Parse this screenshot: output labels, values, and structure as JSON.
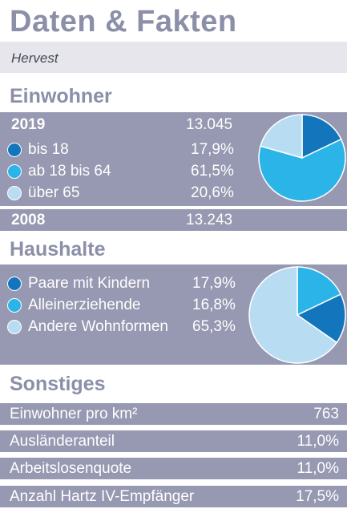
{
  "header": {
    "title": "Daten & Fakten",
    "place": "Hervest"
  },
  "colors": {
    "dark": "#1375bc",
    "mid": "#2ab4e8",
    "light": "#b8ddf3",
    "band": "#9798b1",
    "heading": "#8b8fa8"
  },
  "einwohner": {
    "heading": "Einwohner",
    "year1": "2019",
    "value1": "13.045",
    "items": [
      {
        "label": "bis 18",
        "value": "17,9%",
        "color": "#1375bc"
      },
      {
        "label": "ab 18 bis 64",
        "value": "61,5%",
        "color": "#2ab4e8"
      },
      {
        "label": "über 65",
        "value": "20,6%",
        "color": "#b8ddf3"
      }
    ],
    "year2": "2008",
    "value2": "13.243"
  },
  "haushalte": {
    "heading": "Haushalte",
    "items": [
      {
        "label": "Paare mit Kindern",
        "value": "17,9%",
        "color": "#1375bc"
      },
      {
        "label": "Alleinerziehende",
        "value": "16,8%",
        "color": "#2ab4e8"
      },
      {
        "label": "Andere Wohnformen",
        "value": "65,3%",
        "color": "#b8ddf3"
      }
    ]
  },
  "sonstiges": {
    "heading": "Sonstiges",
    "rows": [
      {
        "label": "Einwohner pro km²",
        "value": "763"
      },
      {
        "label": "Ausländeranteil",
        "value": "11,0%"
      },
      {
        "label": "Arbeitslosenquote",
        "value": "11,0%"
      },
      {
        "label": "Anzahl Hartz IV-Empfänger",
        "value": "17,5%"
      }
    ]
  },
  "chart_data": [
    {
      "type": "pie",
      "categories": [
        "bis 18",
        "ab 18 bis 64",
        "über 65"
      ],
      "values": [
        17.9,
        61.5,
        20.6
      ],
      "colors": [
        "#1375bc",
        "#2ab4e8",
        "#b8ddf3"
      ]
    },
    {
      "type": "pie",
      "categories": [
        "Paare mit Kindern",
        "Alleinerziehende",
        "Andere Wohnformen"
      ],
      "values": [
        17.9,
        16.8,
        65.3
      ],
      "colors": [
        "#2ab4e8",
        "#1375bc",
        "#b8ddf3"
      ]
    }
  ]
}
